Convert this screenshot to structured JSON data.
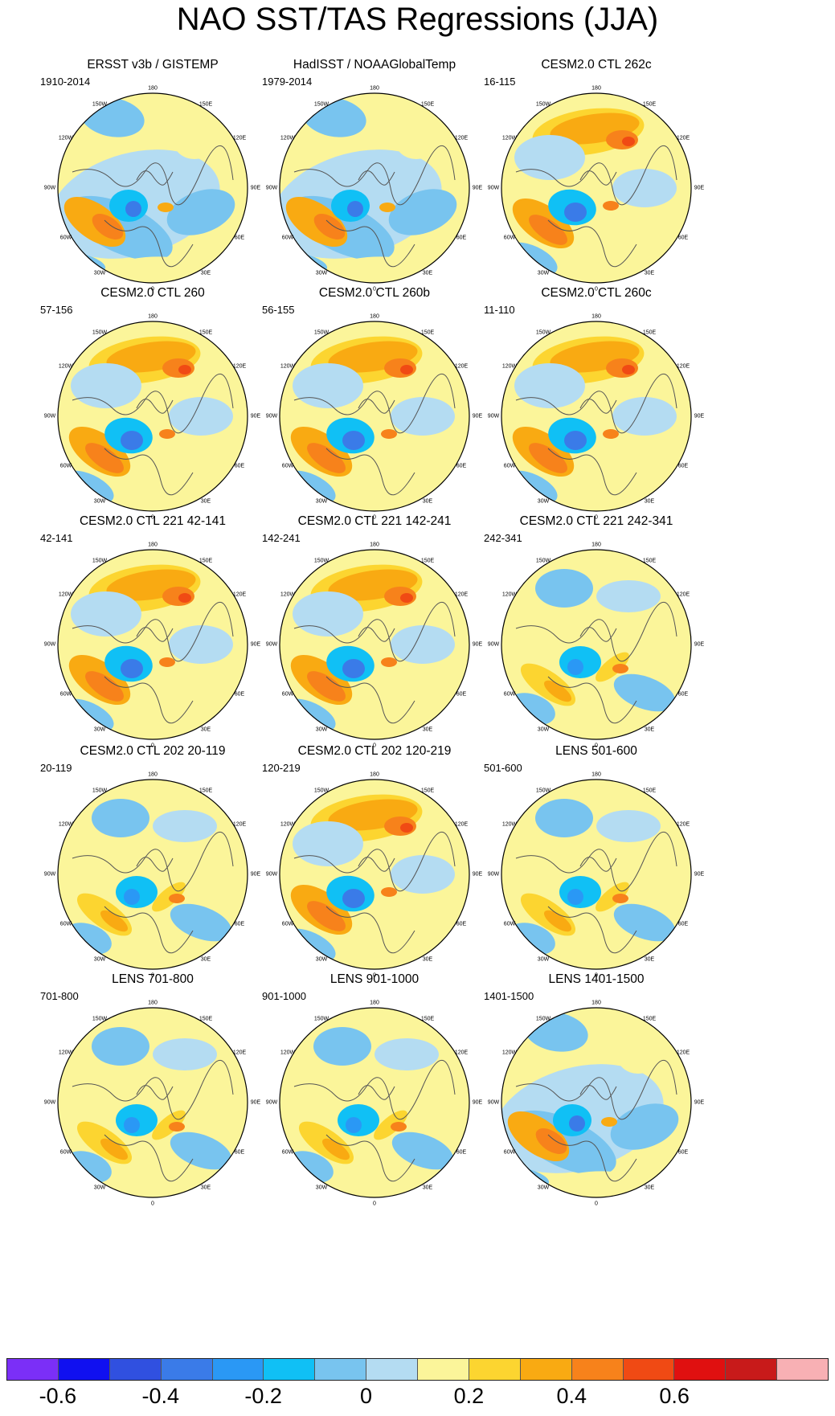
{
  "title": "NAO SST/TAS Regressions (JJA)",
  "lon_labels": {
    "top": "180",
    "top_left": "150W",
    "top_right": "150E",
    "upper_left": "120W",
    "upper_right": "120E",
    "left": "90W",
    "right": "90E",
    "lower_left": "60W",
    "lower_right": "60E",
    "bottom_left": "30W",
    "bottom_right": "30E",
    "bottom": "0"
  },
  "panels": [
    {
      "title": "ERSST v3b / GISTEMP",
      "period": "1910-2014"
    },
    {
      "title": "HadISST / NOAAGlobalTemp",
      "period": "1979-2014"
    },
    {
      "title": "CESM2.0 CTL 262c",
      "period": "16-115"
    },
    {
      "title": "CESM2.0 CTL 260",
      "period": "57-156"
    },
    {
      "title": "CESM2.0 CTL 260b",
      "period": "56-155"
    },
    {
      "title": "CESM2.0 CTL 260c",
      "period": "11-110"
    },
    {
      "title": "CESM2.0 CTL 221 42-141",
      "period": "42-141"
    },
    {
      "title": "CESM2.0 CTL 221 142-241",
      "period": "142-241"
    },
    {
      "title": "CESM2.0 CTL 221 242-341",
      "period": "242-341"
    },
    {
      "title": "CESM2.0 CTL 202 20-119",
      "period": "20-119"
    },
    {
      "title": "CESM2.0 CTL 202 120-219",
      "period": "120-219"
    },
    {
      "title": "LENS 501-600",
      "period": "501-600"
    },
    {
      "title": "LENS 701-800",
      "period": "701-800"
    },
    {
      "title": "LENS 901-1000",
      "period": "901-1000"
    },
    {
      "title": "LENS 1401-1500",
      "period": "1401-1500"
    }
  ],
  "colorbar": {
    "colors": [
      "#7b2ff7",
      "#1010f0",
      "#3050e0",
      "#3a7be8",
      "#2a98f5",
      "#10c0f5",
      "#78c4ef",
      "#b4dcf2",
      "#fbf59a",
      "#fcd530",
      "#f9aa12",
      "#f7821b",
      "#f04a14",
      "#e01010",
      "#c81a1a",
      "#f8b0b4"
    ],
    "tick_labels": [
      "-0.6",
      "-0.4",
      "-0.2",
      "0",
      "0.2",
      "0.4",
      "0.6"
    ],
    "tick_values": [
      -0.6,
      -0.4,
      -0.2,
      0,
      0.2,
      0.4,
      0.6
    ]
  }
}
